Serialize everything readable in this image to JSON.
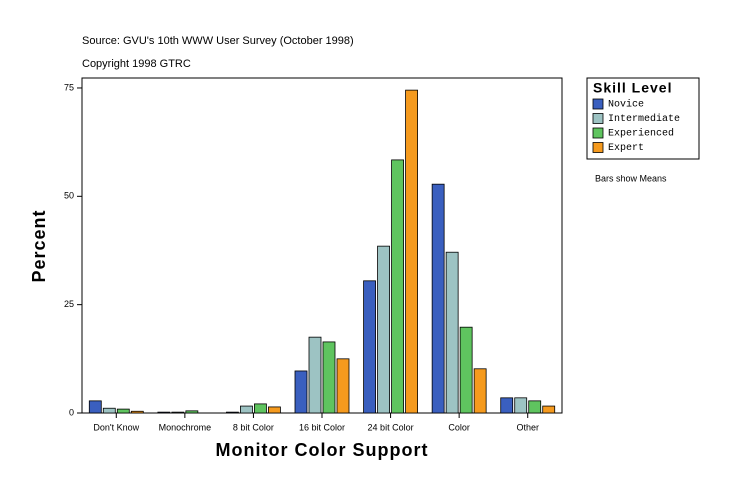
{
  "chart_data": {
    "type": "bar",
    "subtitle": "Source: GVU's 10th WWW User Survey (October 1998)",
    "caption": "Copyright 1998 GTRC",
    "note": "Bars show Means",
    "x_label": "Monitor Color Support",
    "y_label": "Percent",
    "legend_title": "Skill Level",
    "categories": [
      "Don't Know",
      "Monochrome",
      "8 bit Color",
      "16 bit Color",
      "24 bit Color",
      "Color",
      "Other"
    ],
    "series": [
      {
        "name": "Novice",
        "color": "#3a5fbf",
        "values": [
          2.8,
          0.2,
          0.2,
          9.7,
          30.5,
          52.8,
          3.5
        ]
      },
      {
        "name": "Intermediate",
        "color": "#9dc3c3",
        "values": [
          1.1,
          0.2,
          1.6,
          17.5,
          38.5,
          37.1,
          3.5
        ]
      },
      {
        "name": "Experienced",
        "color": "#5fc45f",
        "values": [
          0.9,
          0.5,
          2.1,
          16.4,
          58.4,
          19.8,
          2.8
        ]
      },
      {
        "name": "Expert",
        "color": "#f59a1e",
        "values": [
          0.4,
          0,
          1.4,
          12.5,
          74.5,
          10.2,
          1.6
        ]
      }
    ],
    "ylim": [
      0,
      77.3
    ],
    "yticks": [
      0,
      25,
      50,
      75
    ]
  }
}
